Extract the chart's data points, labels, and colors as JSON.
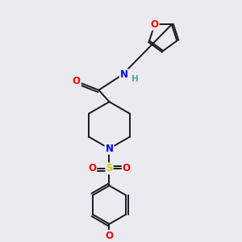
{
  "bg_color": "#eaeaf0",
  "bond_color": "#1a1a1a",
  "atom_colors": {
    "O": "#ff0000",
    "N": "#0000ff",
    "S": "#cccc00",
    "H": "#4da6a6",
    "C": "#1a1a1a"
  },
  "font_size_atoms": 8.5,
  "font_size_small": 7.0,
  "line_width": 1.4,
  "figsize": [
    3.0,
    3.0
  ],
  "dpi": 100,
  "xlim": [
    0,
    10
  ],
  "ylim": [
    0,
    10
  ]
}
